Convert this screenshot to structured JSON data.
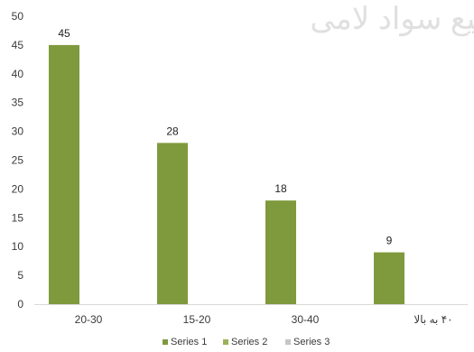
{
  "chart_data": {
    "type": "bar",
    "categories": [
      "20-30",
      "15-20",
      "30-40",
      "۴۰ به بالا"
    ],
    "series": [
      {
        "name": "Series 1",
        "values": [
          45,
          28,
          18,
          9
        ],
        "color": "#7f9a3c"
      },
      {
        "name": "Series 2",
        "values": [
          0,
          0,
          0,
          0
        ],
        "color": "#9bb25a"
      },
      {
        "name": "Series 3",
        "values": [
          0,
          0,
          0,
          0
        ],
        "color": "#c6c6c6"
      }
    ],
    "data_labels": [
      "45",
      "28",
      "18",
      "9"
    ],
    "y_ticks": [
      0,
      5,
      10,
      15,
      20,
      25,
      30,
      35,
      40,
      45,
      50
    ],
    "ylim": [
      0,
      50
    ],
    "grid": false,
    "legend_position": "bottom",
    "watermark_text": "بیع سواد لامی"
  }
}
